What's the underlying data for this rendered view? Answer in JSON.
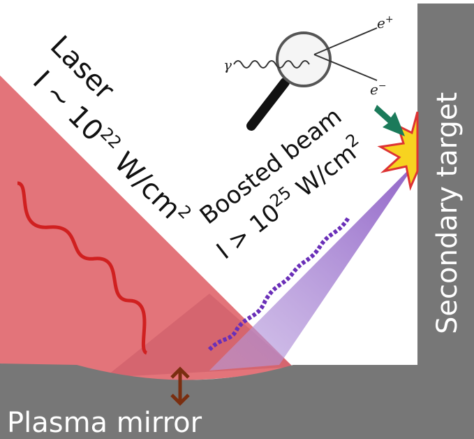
{
  "laser": {
    "label": "Laser",
    "intensity": "I ~ 10",
    "exponent": "22",
    "unit": " W/cm",
    "unit_exponent": "2"
  },
  "boosted_beam": {
    "label": "Boosted beam",
    "intensity": "I > 10",
    "exponent": "25",
    "unit": " W/cm",
    "unit_exponent": "2"
  },
  "secondary_target": {
    "label": "Secondary target"
  },
  "plasma_mirror": {
    "label": "Plasma mirror"
  },
  "inset": {
    "photon": "γ",
    "positron": "e",
    "positron_sign": "+",
    "electron": "e",
    "electron_sign": "−"
  }
}
